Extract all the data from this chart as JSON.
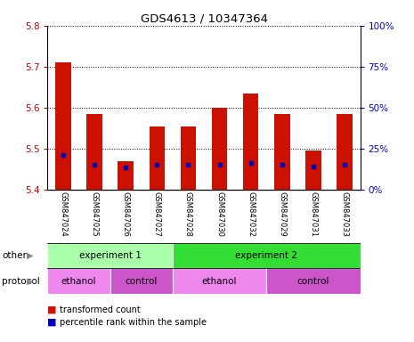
{
  "title": "GDS4613 / 10347364",
  "samples": [
    "GSM847024",
    "GSM847025",
    "GSM847026",
    "GSM847027",
    "GSM847028",
    "GSM847030",
    "GSM847032",
    "GSM847029",
    "GSM847031",
    "GSM847033"
  ],
  "bar_values": [
    5.71,
    5.585,
    5.47,
    5.555,
    5.555,
    5.6,
    5.635,
    5.585,
    5.495,
    5.585
  ],
  "blue_dot_values": [
    5.485,
    5.462,
    5.455,
    5.462,
    5.462,
    5.462,
    5.465,
    5.462,
    5.456,
    5.462
  ],
  "bar_bottom": 5.4,
  "ylim": [
    5.4,
    5.8
  ],
  "yticks_left": [
    5.4,
    5.5,
    5.6,
    5.7,
    5.8
  ],
  "yticks_right": [
    0,
    25,
    50,
    75,
    100
  ],
  "ylabel_left_color": "#cc0000",
  "ylabel_right_color": "#0000cc",
  "bar_color": "#cc1100",
  "dot_color": "#0000bb",
  "other_row": [
    {
      "label": "experiment 1",
      "start": 0,
      "end": 4,
      "color": "#aaffaa"
    },
    {
      "label": "experiment 2",
      "start": 4,
      "end": 10,
      "color": "#33dd33"
    }
  ],
  "protocol_row": [
    {
      "label": "ethanol",
      "start": 0,
      "end": 2,
      "color": "#ee88ee"
    },
    {
      "label": "control",
      "start": 2,
      "end": 4,
      "color": "#cc55cc"
    },
    {
      "label": "ethanol",
      "start": 4,
      "end": 7,
      "color": "#ee88ee"
    },
    {
      "label": "control",
      "start": 7,
      "end": 10,
      "color": "#cc55cc"
    }
  ],
  "legend_items": [
    {
      "label": "transformed count",
      "color": "#cc1100"
    },
    {
      "label": "percentile rank within the sample",
      "color": "#0000bb"
    }
  ],
  "bg_color": "#ffffff",
  "tick_area_color": "#d0d0d0"
}
